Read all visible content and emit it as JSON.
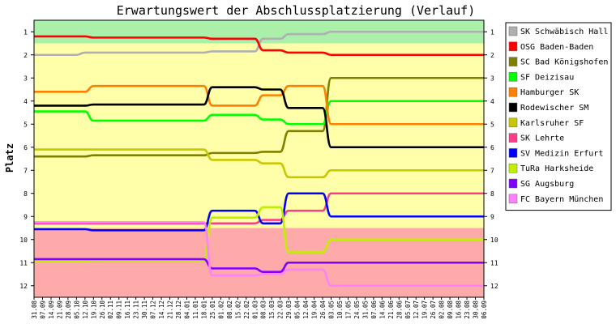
{
  "chart_data": {
    "type": "line",
    "title": "Erwartungswert der Abschlussplatzierung (Verlauf)",
    "xlabel": "",
    "ylabel": "Platz",
    "ylim": [
      12.5,
      0.5
    ],
    "y_ticks": [
      1,
      2,
      3,
      4,
      5,
      6,
      7,
      8,
      9,
      10,
      11,
      12
    ],
    "grid": false,
    "legend_position": "right",
    "x": [
      "31.08",
      "07.09",
      "14.09",
      "21.09",
      "28.09",
      "05.10",
      "12.10",
      "19.10",
      "26.10",
      "02.11",
      "09.11",
      "16.11",
      "23.11",
      "30.11",
      "07.12",
      "14.12",
      "21.12",
      "28.12",
      "04.01",
      "11.01",
      "18.01",
      "25.01",
      "01.02",
      "08.02",
      "15.02",
      "22.02",
      "01.03",
      "08.03",
      "15.03",
      "22.03",
      "29.03",
      "05.04",
      "12.04",
      "19.04",
      "26.04",
      "03.05",
      "10.05",
      "17.05",
      "24.05",
      "31.05",
      "07.06",
      "14.06",
      "21.06",
      "28.06",
      "05.07",
      "12.07",
      "19.07",
      "26.07",
      "02.08",
      "09.08",
      "16.08",
      "23.08",
      "30.08",
      "06.09"
    ],
    "bands": [
      {
        "from": 0.5,
        "to": 1.5,
        "color": "#aaf0aa"
      },
      {
        "from": 1.5,
        "to": 9.5,
        "color": "#ffffaa"
      },
      {
        "from": 9.5,
        "to": 12.5,
        "color": "#ffaaaa"
      }
    ],
    "series": [
      {
        "name": "SK Schwäbisch Hall",
        "color": "#b0b0b0",
        "values": [
          2.0,
          2.0,
          2.0,
          2.0,
          2.0,
          2.0,
          1.9,
          1.9,
          1.9,
          1.9,
          1.9,
          1.9,
          1.9,
          1.9,
          1.9,
          1.9,
          1.9,
          1.9,
          1.9,
          1.9,
          1.9,
          1.85,
          1.85,
          1.85,
          1.85,
          1.85,
          1.85,
          1.3,
          1.3,
          1.3,
          1.1,
          1.1,
          1.1,
          1.1,
          1.1,
          1.0,
          1.0,
          1.0,
          1.0,
          1.0,
          1.0,
          1.0,
          1.0,
          1.0,
          1.0,
          1.0,
          1.0,
          1.0,
          1.0,
          1.0,
          1.0,
          1.0,
          1.0,
          1.0
        ]
      },
      {
        "name": "OSG Baden-Baden",
        "color": "#ff0000",
        "values": [
          1.2,
          1.2,
          1.2,
          1.2,
          1.2,
          1.2,
          1.2,
          1.25,
          1.25,
          1.25,
          1.25,
          1.25,
          1.25,
          1.25,
          1.25,
          1.25,
          1.25,
          1.25,
          1.25,
          1.25,
          1.25,
          1.3,
          1.3,
          1.3,
          1.3,
          1.3,
          1.3,
          1.8,
          1.8,
          1.8,
          1.9,
          1.9,
          1.9,
          1.9,
          1.9,
          2.0,
          2.0,
          2.0,
          2.0,
          2.0,
          2.0,
          2.0,
          2.0,
          2.0,
          2.0,
          2.0,
          2.0,
          2.0,
          2.0,
          2.0,
          2.0,
          2.0,
          2.0,
          2.0
        ]
      },
      {
        "name": "SC Bad Königshofen",
        "color": "#808000",
        "values": [
          6.4,
          6.4,
          6.4,
          6.4,
          6.4,
          6.4,
          6.4,
          6.35,
          6.35,
          6.35,
          6.35,
          6.35,
          6.35,
          6.35,
          6.35,
          6.35,
          6.35,
          6.35,
          6.35,
          6.35,
          6.35,
          6.25,
          6.25,
          6.25,
          6.25,
          6.25,
          6.25,
          6.2,
          6.2,
          6.2,
          5.3,
          5.3,
          5.3,
          5.3,
          5.3,
          3.0,
          3.0,
          3.0,
          3.0,
          3.0,
          3.0,
          3.0,
          3.0,
          3.0,
          3.0,
          3.0,
          3.0,
          3.0,
          3.0,
          3.0,
          3.0,
          3.0,
          3.0,
          3.0
        ]
      },
      {
        "name": "SF Deizisau",
        "color": "#00ff00",
        "values": [
          4.45,
          4.45,
          4.45,
          4.45,
          4.45,
          4.45,
          4.45,
          4.85,
          4.85,
          4.85,
          4.85,
          4.85,
          4.85,
          4.85,
          4.85,
          4.85,
          4.85,
          4.85,
          4.85,
          4.85,
          4.85,
          4.6,
          4.6,
          4.6,
          4.6,
          4.6,
          4.6,
          4.8,
          4.8,
          4.8,
          5.0,
          5.0,
          5.0,
          5.0,
          5.0,
          4.0,
          4.0,
          4.0,
          4.0,
          4.0,
          4.0,
          4.0,
          4.0,
          4.0,
          4.0,
          4.0,
          4.0,
          4.0,
          4.0,
          4.0,
          4.0,
          4.0,
          4.0,
          4.0
        ]
      },
      {
        "name": "Hamburger SK",
        "color": "#ff8000",
        "values": [
          3.6,
          3.6,
          3.6,
          3.6,
          3.6,
          3.6,
          3.6,
          3.35,
          3.35,
          3.35,
          3.35,
          3.35,
          3.35,
          3.35,
          3.35,
          3.35,
          3.35,
          3.35,
          3.35,
          3.35,
          3.35,
          4.2,
          4.2,
          4.2,
          4.2,
          4.2,
          4.2,
          3.75,
          3.75,
          3.75,
          3.35,
          3.35,
          3.35,
          3.35,
          3.35,
          5.0,
          5.0,
          5.0,
          5.0,
          5.0,
          5.0,
          5.0,
          5.0,
          5.0,
          5.0,
          5.0,
          5.0,
          5.0,
          5.0,
          5.0,
          5.0,
          5.0,
          5.0,
          5.0
        ]
      },
      {
        "name": "Rodewischer SM",
        "color": "#000000",
        "values": [
          4.2,
          4.2,
          4.2,
          4.2,
          4.2,
          4.2,
          4.2,
          4.15,
          4.15,
          4.15,
          4.15,
          4.15,
          4.15,
          4.15,
          4.15,
          4.15,
          4.15,
          4.15,
          4.15,
          4.15,
          4.15,
          3.4,
          3.4,
          3.4,
          3.4,
          3.4,
          3.4,
          3.5,
          3.5,
          3.5,
          4.3,
          4.3,
          4.3,
          4.3,
          4.3,
          6.0,
          6.0,
          6.0,
          6.0,
          6.0,
          6.0,
          6.0,
          6.0,
          6.0,
          6.0,
          6.0,
          6.0,
          6.0,
          6.0,
          6.0,
          6.0,
          6.0,
          6.0,
          6.0
        ]
      },
      {
        "name": "Karlsruher SF",
        "color": "#c8c800",
        "values": [
          6.1,
          6.1,
          6.1,
          6.1,
          6.1,
          6.1,
          6.1,
          6.1,
          6.1,
          6.1,
          6.1,
          6.1,
          6.1,
          6.1,
          6.1,
          6.1,
          6.1,
          6.1,
          6.1,
          6.1,
          6.1,
          6.55,
          6.55,
          6.55,
          6.55,
          6.55,
          6.55,
          6.7,
          6.7,
          6.7,
          7.3,
          7.3,
          7.3,
          7.3,
          7.3,
          7.0,
          7.0,
          7.0,
          7.0,
          7.0,
          7.0,
          7.0,
          7.0,
          7.0,
          7.0,
          7.0,
          7.0,
          7.0,
          7.0,
          7.0,
          7.0,
          7.0,
          7.0,
          7.0
        ]
      },
      {
        "name": "SK Lehrte",
        "color": "#ff3c8c",
        "values": [
          9.3,
          9.3,
          9.3,
          9.3,
          9.3,
          9.3,
          9.3,
          9.3,
          9.3,
          9.3,
          9.3,
          9.3,
          9.3,
          9.3,
          9.3,
          9.3,
          9.3,
          9.3,
          9.3,
          9.3,
          9.3,
          9.3,
          9.3,
          9.3,
          9.3,
          9.3,
          9.3,
          9.15,
          9.15,
          9.15,
          8.75,
          8.75,
          8.75,
          8.75,
          8.75,
          8.0,
          8.0,
          8.0,
          8.0,
          8.0,
          8.0,
          8.0,
          8.0,
          8.0,
          8.0,
          8.0,
          8.0,
          8.0,
          8.0,
          8.0,
          8.0,
          8.0,
          8.0,
          8.0
        ]
      },
      {
        "name": "SV Medizin Erfurt",
        "color": "#0000ff",
        "values": [
          9.55,
          9.55,
          9.55,
          9.55,
          9.55,
          9.55,
          9.55,
          9.6,
          9.6,
          9.6,
          9.6,
          9.6,
          9.6,
          9.6,
          9.6,
          9.6,
          9.6,
          9.6,
          9.6,
          9.6,
          9.6,
          8.75,
          8.75,
          8.75,
          8.75,
          8.75,
          8.75,
          9.3,
          9.3,
          9.3,
          8.0,
          8.0,
          8.0,
          8.0,
          8.0,
          9.0,
          9.0,
          9.0,
          9.0,
          9.0,
          9.0,
          9.0,
          9.0,
          9.0,
          9.0,
          9.0,
          9.0,
          9.0,
          9.0,
          9.0,
          9.0,
          9.0,
          9.0,
          9.0
        ]
      },
      {
        "name": "TuRa Harksheide",
        "color": "#c0f000",
        "values": [
          10.95,
          10.95,
          10.95,
          10.95,
          10.95,
          10.95,
          10.95,
          10.9,
          10.9,
          10.9,
          10.9,
          10.9,
          10.9,
          10.9,
          10.9,
          10.9,
          10.9,
          10.9,
          10.9,
          10.9,
          10.9,
          9.05,
          9.05,
          9.05,
          9.05,
          9.05,
          9.05,
          8.6,
          8.6,
          8.6,
          10.55,
          10.55,
          10.55,
          10.55,
          10.55,
          10.0,
          10.0,
          10.0,
          10.0,
          10.0,
          10.0,
          10.0,
          10.0,
          10.0,
          10.0,
          10.0,
          10.0,
          10.0,
          10.0,
          10.0,
          10.0,
          10.0,
          10.0,
          10.0
        ]
      },
      {
        "name": "SG Augsburg",
        "color": "#8000ff",
        "values": [
          10.85,
          10.85,
          10.85,
          10.85,
          10.85,
          10.85,
          10.85,
          10.85,
          10.85,
          10.85,
          10.85,
          10.85,
          10.85,
          10.85,
          10.85,
          10.85,
          10.85,
          10.85,
          10.85,
          10.85,
          10.85,
          11.25,
          11.25,
          11.25,
          11.25,
          11.25,
          11.25,
          11.4,
          11.4,
          11.4,
          11.0,
          11.0,
          11.0,
          11.0,
          11.0,
          11.0,
          11.0,
          11.0,
          11.0,
          11.0,
          11.0,
          11.0,
          11.0,
          11.0,
          11.0,
          11.0,
          11.0,
          11.0,
          11.0,
          11.0,
          11.0,
          11.0,
          11.0,
          11.0
        ]
      },
      {
        "name": "FC Bayern München",
        "color": "#ff80ff",
        "values": [
          9.25,
          9.25,
          9.25,
          9.25,
          9.25,
          9.25,
          9.25,
          9.25,
          9.25,
          9.25,
          9.25,
          9.25,
          9.25,
          9.25,
          9.25,
          9.25,
          9.25,
          9.25,
          9.25,
          9.25,
          9.25,
          11.55,
          11.55,
          11.55,
          11.55,
          11.55,
          11.55,
          11.5,
          11.5,
          11.5,
          11.3,
          11.3,
          11.3,
          11.3,
          11.3,
          12.0,
          12.0,
          12.0,
          12.0,
          12.0,
          12.0,
          12.0,
          12.0,
          12.0,
          12.0,
          12.0,
          12.0,
          12.0,
          12.0,
          12.0,
          12.0,
          12.0,
          12.0,
          12.0
        ]
      }
    ]
  }
}
